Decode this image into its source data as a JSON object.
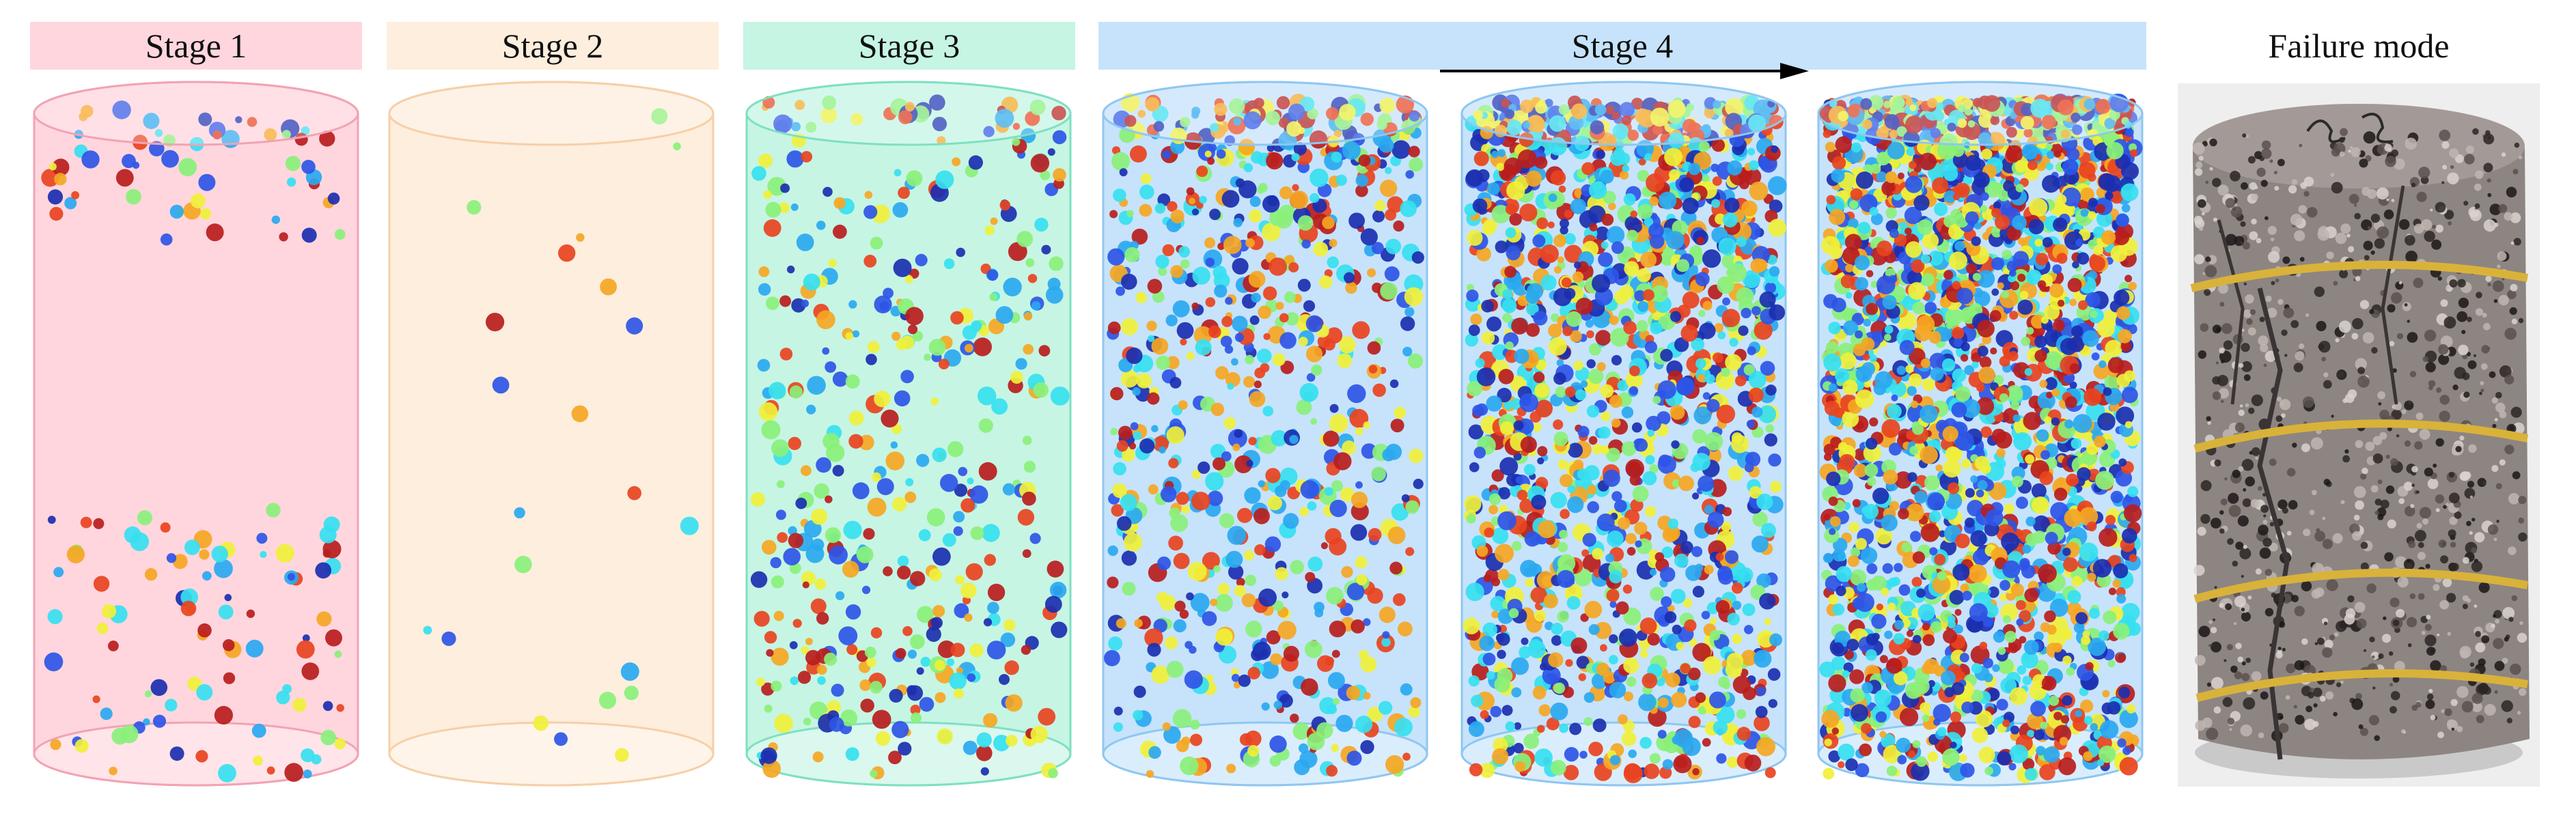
{
  "stages": [
    {
      "label": "Stage 1",
      "fill": "#ffd6de",
      "edge": "#f2a3b3"
    },
    {
      "label": "Stage 2",
      "fill": "#fdeedd",
      "edge": "#f7cfa8"
    },
    {
      "label": "Stage 3",
      "fill": "#c6f5e4",
      "edge": "#7fe0c1"
    },
    {
      "label": "Stage 4",
      "fill": "#c6e3fb",
      "edge": "#8fc7f1"
    }
  ],
  "specimens": [
    {
      "stage_index": 0,
      "event_count": 150,
      "distribution": "ends"
    },
    {
      "stage_index": 1,
      "event_count": 22,
      "distribution": "sparse"
    },
    {
      "stage_index": 2,
      "event_count": 430,
      "distribution": "uniform"
    },
    {
      "stage_index": 3,
      "event_count": 780,
      "distribution": "upper"
    },
    {
      "stage_index": 3,
      "event_count": 1600,
      "distribution": "upper"
    },
    {
      "stage_index": 3,
      "event_count": 2500,
      "distribution": "upper"
    }
  ],
  "event_colors": [
    "#1b2fb0",
    "#2e55e6",
    "#2aa8f0",
    "#36e0f0",
    "#8af07a",
    "#f0f03a",
    "#f5a623",
    "#e8431f",
    "#b81d1d"
  ],
  "failure_mode": {
    "title": "Failure mode",
    "rock_color": "#8d8582",
    "band_color": "#d9b23a"
  }
}
